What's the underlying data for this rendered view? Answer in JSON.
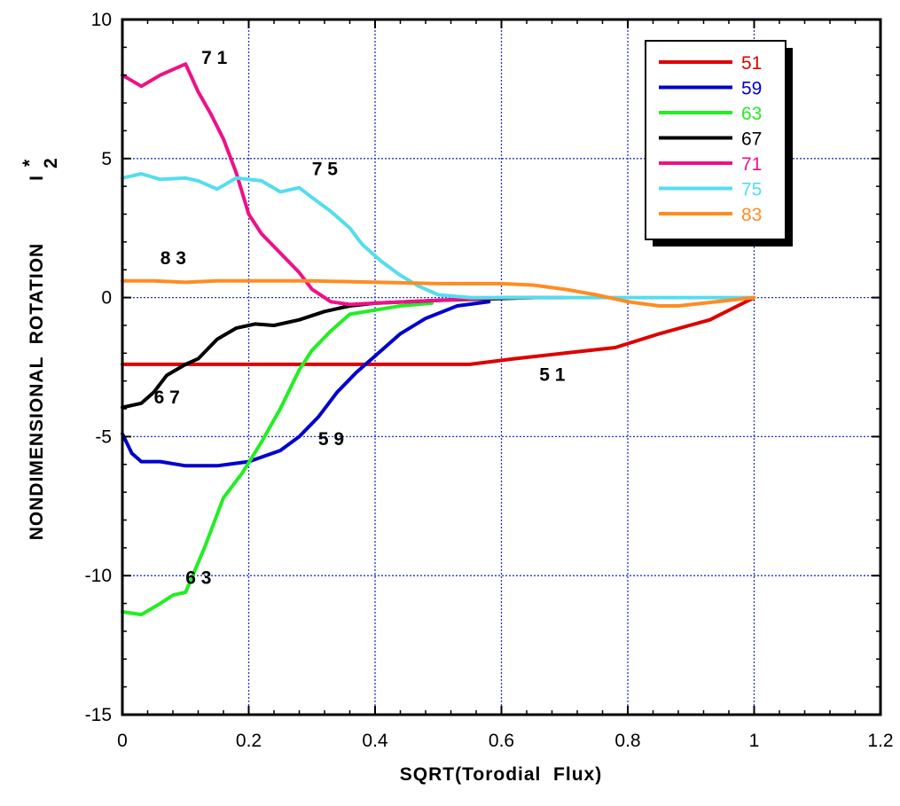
{
  "chart_data": {
    "type": "line",
    "xlabel": "SQRT(Torodial  Flux)",
    "ylabel": "NONDIMENSIONAL  ROTATION",
    "ylabel_symbol": "I",
    "ylabel_superscript": "*",
    "ylabel_subscript": "2",
    "xlim": [
      0,
      1.2
    ],
    "ylim": [
      -15,
      10
    ],
    "xticks": [
      "0",
      "0.2",
      "0.4",
      "0.6",
      "0.8",
      "1",
      "1.2"
    ],
    "yticks": [
      "10",
      "5",
      "0",
      "-5",
      "-10",
      "-15"
    ],
    "grid": true,
    "legend_position": "top-right",
    "series": [
      {
        "name": "51",
        "color": "#dd0000",
        "x": [
          0,
          0.2,
          0.4,
          0.55,
          0.62,
          0.7,
          0.78,
          0.85,
          0.93,
          1.0
        ],
        "y": [
          -2.4,
          -2.4,
          -2.4,
          -2.4,
          -2.2,
          -2.0,
          -1.8,
          -1.3,
          -0.8,
          0
        ]
      },
      {
        "name": "59",
        "color": "#0000cc",
        "x": [
          0,
          0.015,
          0.03,
          0.06,
          0.1,
          0.15,
          0.2,
          0.25,
          0.28,
          0.31,
          0.34,
          0.37,
          0.4,
          0.44,
          0.48,
          0.53,
          0.58
        ],
        "y": [
          -4.9,
          -5.6,
          -5.9,
          -5.9,
          -6.05,
          -6.05,
          -5.9,
          -5.5,
          -5.0,
          -4.3,
          -3.4,
          -2.7,
          -2.1,
          -1.3,
          -0.75,
          -0.3,
          -0.15
        ]
      },
      {
        "name": "63",
        "color": "#22ee22",
        "x": [
          0,
          0.03,
          0.06,
          0.08,
          0.1,
          0.13,
          0.16,
          0.19,
          0.22,
          0.25,
          0.28,
          0.3,
          0.33,
          0.36,
          0.4,
          0.44,
          0.49
        ],
        "y": [
          -11.3,
          -11.4,
          -11.0,
          -10.7,
          -10.6,
          -9.0,
          -7.2,
          -6.3,
          -5.2,
          -4.0,
          -2.6,
          -1.9,
          -1.2,
          -0.6,
          -0.45,
          -0.3,
          -0.2
        ]
      },
      {
        "name": "67",
        "color": "#000000",
        "x": [
          0,
          0.03,
          0.05,
          0.07,
          0.1,
          0.12,
          0.15,
          0.18,
          0.21,
          0.24,
          0.28,
          0.32,
          0.36,
          0.4,
          0.5,
          0.65
        ],
        "y": [
          -3.95,
          -3.8,
          -3.4,
          -2.8,
          -2.4,
          -2.2,
          -1.5,
          -1.1,
          -0.95,
          -1.0,
          -0.8,
          -0.5,
          -0.3,
          -0.2,
          -0.1,
          0
        ]
      },
      {
        "name": "71",
        "color": "#ee1188",
        "x": [
          0,
          0.03,
          0.06,
          0.08,
          0.1,
          0.12,
          0.14,
          0.16,
          0.18,
          0.2,
          0.22,
          0.25,
          0.28,
          0.3,
          0.33,
          0.36,
          0.4,
          0.5,
          0.6,
          0.7
        ],
        "y": [
          8.0,
          7.6,
          8.0,
          8.2,
          8.4,
          7.4,
          6.6,
          5.7,
          4.5,
          3.0,
          2.3,
          1.6,
          0.9,
          0.3,
          -0.15,
          -0.25,
          -0.2,
          -0.1,
          0,
          0
        ]
      },
      {
        "name": "75",
        "color": "#55ddee",
        "x": [
          0,
          0.03,
          0.06,
          0.1,
          0.12,
          0.15,
          0.18,
          0.22,
          0.25,
          0.28,
          0.3,
          0.33,
          0.36,
          0.38,
          0.41,
          0.44,
          0.47,
          0.5,
          0.55,
          0.6,
          0.8,
          1.0
        ],
        "y": [
          4.3,
          4.45,
          4.25,
          4.3,
          4.2,
          3.9,
          4.3,
          4.2,
          3.8,
          3.95,
          3.6,
          3.1,
          2.5,
          1.9,
          1.3,
          0.8,
          0.4,
          0.1,
          0,
          0,
          0,
          0
        ]
      },
      {
        "name": "83",
        "color": "#ff8c22",
        "x": [
          0,
          0.05,
          0.1,
          0.15,
          0.3,
          0.5,
          0.6,
          0.65,
          0.7,
          0.75,
          0.8,
          0.85,
          0.88,
          0.92,
          0.96,
          1.0
        ],
        "y": [
          0.6,
          0.6,
          0.55,
          0.6,
          0.6,
          0.5,
          0.5,
          0.45,
          0.3,
          0.1,
          -0.15,
          -0.3,
          -0.3,
          -0.2,
          -0.1,
          0
        ]
      }
    ],
    "annotations": [
      {
        "text": "7 1",
        "x": 0.125,
        "y": 8.4
      },
      {
        "text": "7 5",
        "x": 0.3,
        "y": 4.4
      },
      {
        "text": "8 3",
        "x": 0.06,
        "y": 1.2
      },
      {
        "text": "5 1",
        "x": 0.66,
        "y": -3.0
      },
      {
        "text": "6 7",
        "x": 0.05,
        "y": -3.8
      },
      {
        "text": "5 9",
        "x": 0.31,
        "y": -5.3
      },
      {
        "text": "6 3",
        "x": 0.1,
        "y": -10.3
      }
    ]
  }
}
